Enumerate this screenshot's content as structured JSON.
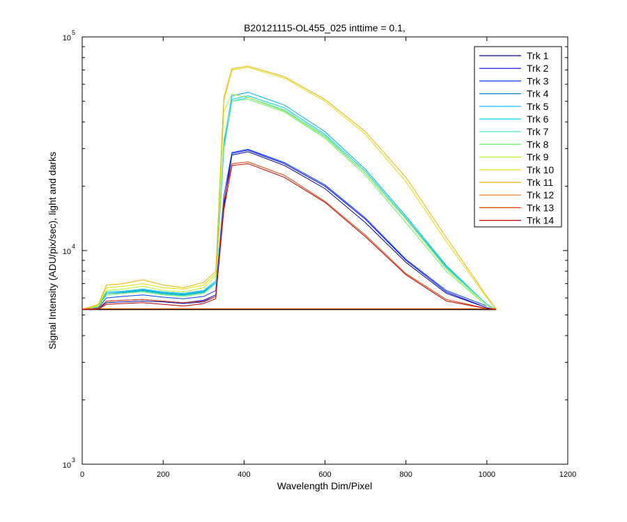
{
  "chart_data": {
    "type": "line",
    "title": "B20121115-OL455_025 inttime = 0.1,",
    "xlabel": "Wavelength Dim/Pixel",
    "ylabel": "Signal Intensity (ADU/pix/sec), light and darks",
    "xlim": [
      0,
      1200
    ],
    "ylim": [
      1000,
      100000
    ],
    "yscale": "log",
    "grid": false,
    "legend_position": "top-right",
    "x_ticks": [
      "0",
      "200",
      "400",
      "600",
      "800",
      "1000",
      "1200"
    ],
    "y_ticks": [
      {
        "value": 1000,
        "base": "10",
        "exp": "3"
      },
      {
        "value": 10000,
        "base": "10",
        "exp": "4"
      },
      {
        "value": 100000,
        "base": "10",
        "exp": "5"
      }
    ],
    "baseline_value": 5300,
    "series": [
      {
        "name": "Trk 1",
        "color": "#0000a0",
        "x": [
          0,
          40,
          60,
          100,
          150,
          200,
          250,
          300,
          330,
          350,
          370,
          410,
          500,
          600,
          700,
          800,
          900,
          1000,
          1023
        ],
        "y": [
          5300,
          5350,
          5700,
          5750,
          5800,
          5750,
          5650,
          5750,
          6100,
          16000,
          28000,
          29000,
          25000,
          19500,
          13500,
          8800,
          6300,
          5400,
          5300
        ]
      },
      {
        "name": "Trk 2",
        "color": "#0000ff",
        "x": [
          0,
          40,
          60,
          100,
          150,
          200,
          250,
          300,
          330,
          350,
          370,
          410,
          500,
          600,
          700,
          800,
          900,
          1000,
          1023
        ],
        "y": [
          5300,
          5350,
          5800,
          5850,
          5900,
          5800,
          5700,
          5850,
          6200,
          16500,
          28500,
          29500,
          25500,
          20000,
          14000,
          9000,
          6400,
          5400,
          5300
        ]
      },
      {
        "name": "Trk 3",
        "color": "#0040ff",
        "x": [
          0,
          40,
          60,
          100,
          150,
          200,
          250,
          300,
          330,
          350,
          370,
          410,
          500,
          600,
          700,
          800,
          900,
          1000,
          1023
        ],
        "y": [
          5300,
          5400,
          6000,
          6100,
          6200,
          6050,
          5950,
          6100,
          6500,
          18000,
          28800,
          29800,
          25800,
          20300,
          14200,
          9100,
          6500,
          5500,
          5300
        ]
      },
      {
        "name": "Trk 4",
        "color": "#0080c0",
        "x": [
          0,
          40,
          60,
          100,
          150,
          200,
          250,
          300,
          330,
          350,
          370,
          410,
          500,
          600,
          700,
          800,
          900,
          1000,
          1023
        ],
        "y": [
          5300,
          5450,
          6300,
          6350,
          6500,
          6300,
          6200,
          6400,
          7000,
          30000,
          50000,
          52000,
          45000,
          34000,
          23000,
          14000,
          8300,
          5600,
          5300
        ]
      },
      {
        "name": "Trk 5",
        "color": "#00b0ff",
        "x": [
          0,
          40,
          60,
          100,
          150,
          200,
          250,
          300,
          330,
          350,
          370,
          410,
          500,
          600,
          700,
          800,
          900,
          1000,
          1023
        ],
        "y": [
          5300,
          5500,
          6400,
          6450,
          6600,
          6400,
          6300,
          6500,
          7200,
          32000,
          53000,
          55000,
          48000,
          36000,
          24000,
          14500,
          8500,
          5600,
          5300
        ]
      },
      {
        "name": "Trk 6",
        "color": "#00d0e0",
        "x": [
          0,
          40,
          60,
          100,
          150,
          200,
          250,
          300,
          330,
          350,
          370,
          410,
          500,
          600,
          700,
          800,
          900,
          1000,
          1023
        ],
        "y": [
          5300,
          5500,
          6300,
          6400,
          6550,
          6350,
          6250,
          6450,
          7100,
          31000,
          51000,
          53000,
          46500,
          35000,
          23500,
          14200,
          8400,
          5600,
          5300
        ]
      },
      {
        "name": "Trk 7",
        "color": "#40e0d0",
        "x": [
          0,
          40,
          60,
          100,
          150,
          200,
          250,
          300,
          330,
          350,
          370,
          410,
          500,
          600,
          700,
          800,
          900,
          1000,
          1023
        ],
        "y": [
          5300,
          5450,
          6200,
          6300,
          6450,
          6250,
          6150,
          6350,
          7000,
          30000,
          50000,
          52000,
          45500,
          34500,
          23000,
          14000,
          8300,
          5600,
          5300
        ]
      },
      {
        "name": "Trk 8",
        "color": "#70f070",
        "x": [
          0,
          40,
          60,
          100,
          150,
          200,
          250,
          300,
          330,
          350,
          370,
          410,
          500,
          600,
          700,
          800,
          900,
          1000,
          1023
        ],
        "y": [
          5300,
          5450,
          6200,
          6300,
          6400,
          6200,
          6100,
          6300,
          7000,
          33000,
          50000,
          51000,
          44500,
          33500,
          22500,
          13500,
          8000,
          5500,
          5300
        ]
      },
      {
        "name": "Trk 9",
        "color": "#b0f030",
        "x": [
          0,
          40,
          60,
          100,
          150,
          200,
          250,
          300,
          330,
          350,
          370,
          410,
          500,
          600,
          700,
          800,
          900,
          1000,
          1023
        ],
        "y": [
          5300,
          5500,
          6500,
          6600,
          6800,
          6500,
          6400,
          6700,
          7600,
          45000,
          54000,
          52000,
          45000,
          34000,
          23000,
          14000,
          8200,
          5500,
          5300
        ]
      },
      {
        "name": "Trk 10",
        "color": "#e0e000",
        "x": [
          0,
          40,
          60,
          100,
          150,
          200,
          250,
          300,
          330,
          350,
          370,
          410,
          500,
          600,
          700,
          800,
          900,
          1000,
          1023
        ],
        "y": [
          5300,
          5550,
          6700,
          6800,
          7000,
          6700,
          6600,
          6900,
          7800,
          50000,
          70000,
          72000,
          64000,
          50000,
          35000,
          21000,
          11000,
          6000,
          5300
        ]
      },
      {
        "name": "Trk 11",
        "color": "#f0b000",
        "x": [
          0,
          40,
          60,
          100,
          150,
          200,
          250,
          300,
          330,
          350,
          370,
          410,
          500,
          600,
          700,
          800,
          900,
          1000,
          1023
        ],
        "y": [
          5300,
          5600,
          6900,
          7000,
          7300,
          6900,
          6700,
          7100,
          8000,
          52000,
          71000,
          73000,
          65000,
          51000,
          36000,
          22000,
          11500,
          6100,
          5300
        ]
      },
      {
        "name": "Trk 12",
        "color": "#ff7000",
        "x": [
          0,
          1023
        ],
        "y": [
          5350,
          5350
        ]
      },
      {
        "name": "Trk 13",
        "color": "#e04000",
        "x": [
          0,
          40,
          60,
          100,
          150,
          200,
          250,
          300,
          330,
          350,
          370,
          410,
          500,
          600,
          700,
          800,
          900,
          1000,
          1023
        ],
        "y": [
          5300,
          5350,
          5800,
          5850,
          5900,
          5800,
          5700,
          5800,
          6100,
          17000,
          25500,
          26000,
          22500,
          17000,
          11800,
          7800,
          5900,
          5350,
          5300
        ]
      },
      {
        "name": "Trk 14",
        "color": "#c00000",
        "x": [
          0,
          40,
          60,
          100,
          150,
          200,
          250,
          300,
          330,
          350,
          370,
          410,
          500,
          600,
          700,
          800,
          900,
          1000,
          1023
        ],
        "y": [
          5300,
          5320,
          5600,
          5650,
          5700,
          5600,
          5500,
          5650,
          5950,
          15500,
          25000,
          25500,
          22000,
          16800,
          11600,
          7700,
          5800,
          5350,
          5300
        ]
      }
    ]
  }
}
